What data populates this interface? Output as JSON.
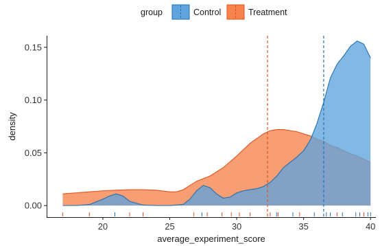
{
  "chart_data": {
    "type": "area",
    "xlabel": "average_experiment_score",
    "ylabel": "density",
    "xlim": [
      15.8,
      40.4
    ],
    "ylim": [
      -0.011,
      0.161
    ],
    "xticks": [
      20,
      25,
      30,
      35,
      40
    ],
    "xtick_labels": [
      "20",
      "25",
      "30",
      "35",
      "40"
    ],
    "yticks": [
      0.0,
      0.05,
      0.1,
      0.15
    ],
    "ytick_labels": [
      "0.00",
      "0.05",
      "0.10",
      "0.15"
    ],
    "legend": {
      "title": "group",
      "position": "top"
    },
    "series": [
      {
        "name": "Control",
        "fill": "#5fa4dc",
        "stroke": "#1f6fb3",
        "mean": 36.5,
        "x": [
          17.0,
          18.0,
          19.0,
          20.0,
          20.5,
          21.0,
          21.5,
          22.0,
          23.0,
          24.0,
          25.0,
          26.0,
          26.5,
          27.0,
          27.5,
          28.0,
          28.5,
          29.0,
          29.5,
          30.0,
          30.5,
          31.0,
          31.5,
          32.0,
          32.5,
          33.0,
          33.5,
          34.0,
          34.5,
          35.0,
          35.5,
          36.0,
          36.5,
          37.0,
          37.5,
          38.0,
          38.5,
          39.0,
          39.5,
          40.0
        ],
        "y": [
          0.0,
          0.0,
          0.001,
          0.006,
          0.009,
          0.011,
          0.009,
          0.004,
          0.0005,
          0.0,
          0.0,
          0.001,
          0.006,
          0.014,
          0.019,
          0.017,
          0.011,
          0.007,
          0.008,
          0.012,
          0.014,
          0.015,
          0.016,
          0.018,
          0.022,
          0.028,
          0.036,
          0.041,
          0.046,
          0.052,
          0.062,
          0.078,
          0.098,
          0.121,
          0.134,
          0.142,
          0.151,
          0.156,
          0.153,
          0.14
        ]
      },
      {
        "name": "Treatment",
        "fill": "#f7824b",
        "stroke": "#e0541e",
        "mean": 32.3,
        "x": [
          17.0,
          18.0,
          19.0,
          20.0,
          21.0,
          22.0,
          23.0,
          24.0,
          25.0,
          25.5,
          26.0,
          26.5,
          27.0,
          28.0,
          29.0,
          30.0,
          31.0,
          32.0,
          32.5,
          33.0,
          33.5,
          34.0,
          34.5,
          35.0,
          35.5,
          36.0,
          36.5,
          37.0,
          37.5,
          38.0,
          38.5,
          39.0,
          39.5,
          40.0
        ],
        "y": [
          0.011,
          0.012,
          0.013,
          0.014,
          0.0145,
          0.015,
          0.015,
          0.0145,
          0.013,
          0.013,
          0.015,
          0.019,
          0.023,
          0.028,
          0.036,
          0.047,
          0.059,
          0.068,
          0.071,
          0.072,
          0.072,
          0.071,
          0.07,
          0.068,
          0.066,
          0.063,
          0.061,
          0.057,
          0.055,
          0.052,
          0.049,
          0.047,
          0.044,
          0.041
        ]
      }
    ],
    "rug": {
      "Control": [
        20.9,
        27.4,
        33.0,
        34.2,
        35.8,
        36.7,
        37.0,
        37.9,
        38.9,
        39.2,
        39.8,
        40.0
      ],
      "Treatment": [
        17.0,
        19.0,
        22.0,
        23.0,
        26.8,
        27.8,
        28.9,
        29.6,
        30.2,
        31.0,
        32.5,
        33.1,
        34.7,
        37.5,
        39.5
      ]
    }
  }
}
